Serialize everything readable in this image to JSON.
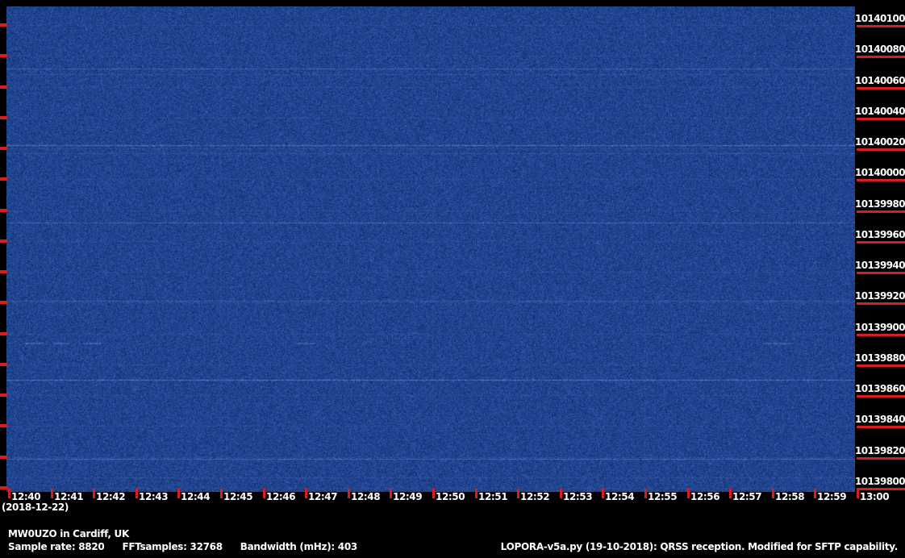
{
  "meta": {
    "station": "MW0UZO in Cardiff, UK",
    "date": "(2018-12-22)",
    "params": [
      "Sample rate: 8820",
      "FFTsamples: 32768",
      "Bandwidth (mHz): 403"
    ],
    "software": "LOPORA-v5a.py (19-10-2018): QRSS reception. Modified for SFTP capability."
  },
  "freq_axis": {
    "unit": "Hz",
    "labels": [
      "10140100",
      "10140080",
      "10140060",
      "10140040",
      "10140020",
      "10140000",
      "10139980",
      "10139960",
      "10139940",
      "10139920",
      "10139900",
      "10139880",
      "10139860",
      "10139840",
      "10139820",
      "10139800"
    ]
  },
  "time_axis": {
    "labels": [
      "12:40",
      "12:41",
      "12:42",
      "12:43",
      "12:44",
      "12:45",
      "12:46",
      "12:47",
      "12:48",
      "12:49",
      "12:50",
      "12:51",
      "12:52",
      "12:53",
      "12:54",
      "12:55",
      "12:56",
      "12:57",
      "12:58",
      "12:59",
      "13:00"
    ]
  },
  "colors": {
    "background": "#000000",
    "tick_red": "#d42020",
    "text_white": "#ffffff",
    "spectrogram_base": "#20438e",
    "signal_line": "#9cc8ff"
  },
  "chart_data": {
    "type": "heatmap",
    "subtype": "qrss-waterfall-spectrogram",
    "title": "",
    "xlabel": "",
    "ylabel": "",
    "x_tick_labels": [
      "12:40",
      "12:41",
      "12:42",
      "12:43",
      "12:44",
      "12:45",
      "12:46",
      "12:47",
      "12:48",
      "12:49",
      "12:50",
      "12:51",
      "12:52",
      "12:53",
      "12:54",
      "12:55",
      "12:56",
      "12:57",
      "12:58",
      "12:59",
      "13:00"
    ],
    "x_range": [
      "12:40",
      "13:00"
    ],
    "y_ticks_hz": [
      10140100,
      10140080,
      10140060,
      10140040,
      10140020,
      10140000,
      10139980,
      10139960,
      10139940,
      10139920,
      10139900,
      10139880,
      10139860,
      10139840,
      10139820,
      10139800
    ],
    "y_range_hz": [
      10139800,
      10140100
    ],
    "background": "blue broadband noise field",
    "grid": {
      "h_lines_every_hz": 20,
      "v_lines_every_min": 5,
      "grid_visible": "faint"
    },
    "horizontal_signal_lines": [
      {
        "freq_hz": 10140072,
        "intensity": 0.3
      },
      {
        "freq_hz": 10140068,
        "intensity": 0.16
      },
      {
        "freq_hz": 10140022,
        "intensity": 0.45
      },
      {
        "freq_hz": 10140017,
        "intensity": 0.18
      },
      {
        "freq_hz": 10139972,
        "intensity": 0.34
      },
      {
        "freq_hz": 10139921,
        "intensity": 0.26
      },
      {
        "freq_hz": 10139870,
        "intensity": 0.5
      },
      {
        "freq_hz": 10139819,
        "intensity": 0.4
      },
      {
        "freq_hz": 10139807,
        "intensity": 0.14
      }
    ],
    "qrss_dashes": {
      "freq_hz": 10139894,
      "intensity": 0.28,
      "segments_min": [
        [
          0.38,
          0.82
        ],
        [
          1.06,
          1.44
        ],
        [
          1.77,
          2.2
        ],
        [
          6.8,
          7.2
        ],
        [
          17.8,
          18.5
        ]
      ]
    }
  }
}
